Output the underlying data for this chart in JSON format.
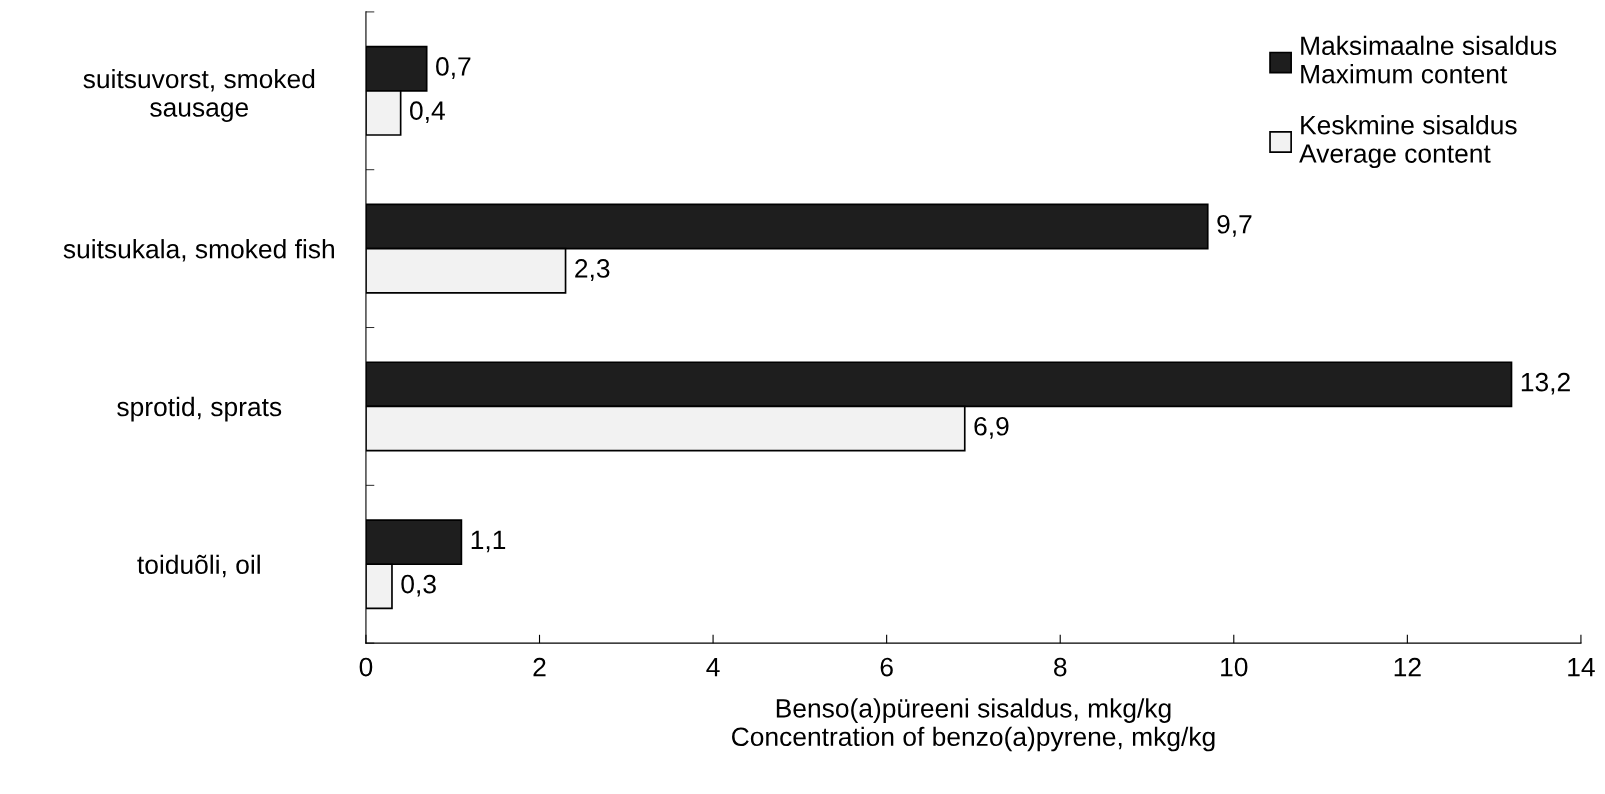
{
  "chart_data": {
    "type": "bar",
    "orientation": "horizontal",
    "xlabel": "Benso(a)püreeni sisaldus, mkg/kg\nConcentration of benzo(a)pyrene, mkg/kg",
    "categories": [
      "suitsuvorst, smoked\nsausage",
      "suitsukala, smoked fish",
      "sprotid, sprats",
      "toiduõli, oil"
    ],
    "series": [
      {
        "name": "Maksimaalne sisaldus\nMaximum content",
        "color": "#1e1e1e",
        "values": [
          0.7,
          9.7,
          13.2,
          1.1
        ],
        "value_labels": [
          "0,7",
          "9,7",
          "13,2",
          "1,1"
        ]
      },
      {
        "name": "Keskmine sisaldus\nAverage content",
        "color": "#f2f2f2",
        "values": [
          0.4,
          2.3,
          6.9,
          0.3
        ],
        "value_labels": [
          "0,4",
          "2,3",
          "6,9",
          "0,3"
        ]
      }
    ],
    "xlim": [
      0,
      14
    ],
    "xticks": [
      0,
      2,
      4,
      6,
      8,
      10,
      12,
      14
    ],
    "grid": false,
    "legend": "top right"
  }
}
